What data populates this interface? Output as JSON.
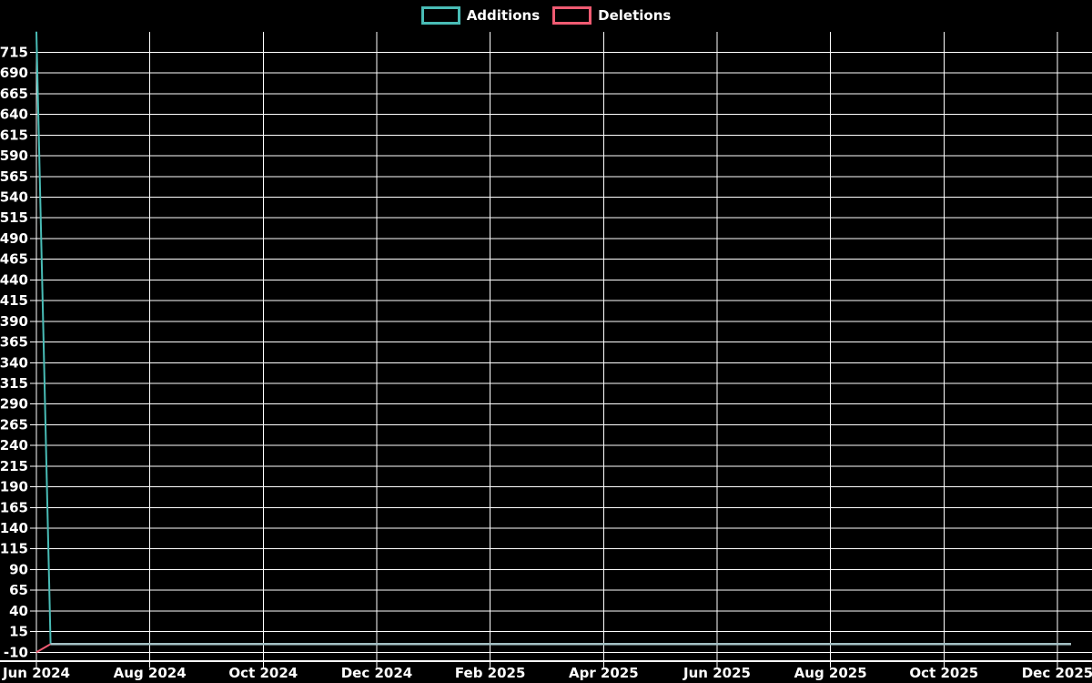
{
  "chart": {
    "background": "#000000",
    "axis_color": "#ffffff",
    "grid_color": "#ffffff",
    "text_color": "#ffffff",
    "legend": {
      "items": [
        {
          "label": "Additions",
          "color": "#49bcb6"
        },
        {
          "label": "Deletions",
          "color": "#ef5b72"
        }
      ]
    }
  },
  "chart_data": {
    "type": "line",
    "title": "",
    "xlabel": "",
    "ylabel": "",
    "grid": true,
    "legend_position": "top-center",
    "background": "#000000",
    "x_axis": {
      "tick_labels": [
        "Jun 2024",
        "Aug 2024",
        "Oct 2024",
        "Dec 2024",
        "Feb 2025",
        "Apr 2025",
        "Jun 2025",
        "Aug 2025",
        "Oct 2025",
        "Dec 2025"
      ],
      "tick_positions_months": [
        0,
        2,
        4,
        6,
        8,
        10,
        12,
        14,
        16,
        18
      ]
    },
    "y_axis": {
      "tick_labels": [
        715,
        690,
        665,
        640,
        615,
        590,
        565,
        540,
        515,
        490,
        465,
        440,
        415,
        390,
        365,
        340,
        315,
        290,
        265,
        240,
        215,
        190,
        165,
        140,
        115,
        90,
        65,
        40,
        15,
        -10
      ],
      "min_tick": -10,
      "max_tick": 715,
      "step": 25
    },
    "ylim": [
      -21,
      740
    ],
    "xlim_months": [
      0,
      18.6
    ],
    "series": [
      {
        "name": "Additions",
        "color": "#49bcb6",
        "points_months_value": [
          [
            0,
            740
          ],
          [
            0.25,
            0
          ],
          [
            18.24,
            0
          ]
        ]
      },
      {
        "name": "Deletions",
        "color": "#ef5b72",
        "points_months_value": [
          [
            0,
            -10
          ],
          [
            0.25,
            0
          ],
          [
            18.24,
            0
          ]
        ]
      }
    ],
    "overlap_line_color": "#a4c0c4"
  }
}
